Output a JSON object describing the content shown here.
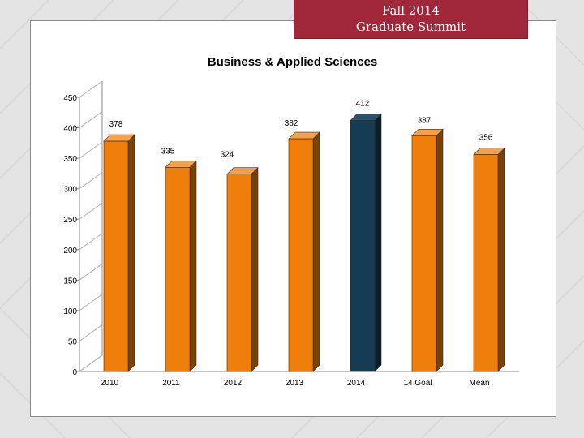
{
  "header": {
    "line1": "Fall 2014",
    "line2": "Graduate Summit"
  },
  "colors": {
    "header_bg": "#a0283a",
    "bar_default": "#f07e0a",
    "bar_default_side": "#7a4206",
    "bar_highlight": "#143c55",
    "bar_highlight_side": "#0a1f2e"
  },
  "chart_data": {
    "type": "bar",
    "title": "Business & Applied Sciences",
    "categories": [
      "2010",
      "2011",
      "2012",
      "2013",
      "2014",
      "14 Goal",
      "Mean"
    ],
    "values": [
      378,
      335,
      324,
      382,
      412,
      387,
      356
    ],
    "data_labels": [
      "378",
      "335",
      "324",
      "382",
      "412",
      "387",
      "356"
    ],
    "highlight_index": 4,
    "ylim": [
      0,
      450
    ],
    "yticks": [
      0,
      50,
      100,
      150,
      200,
      250,
      300,
      350,
      400,
      450
    ],
    "ytick_labels": [
      "0",
      "50",
      "100",
      "150",
      "200",
      "250",
      "300",
      "350",
      "400",
      "450"
    ],
    "xlabel": "",
    "ylabel": "",
    "grid": false,
    "legend": "none"
  }
}
